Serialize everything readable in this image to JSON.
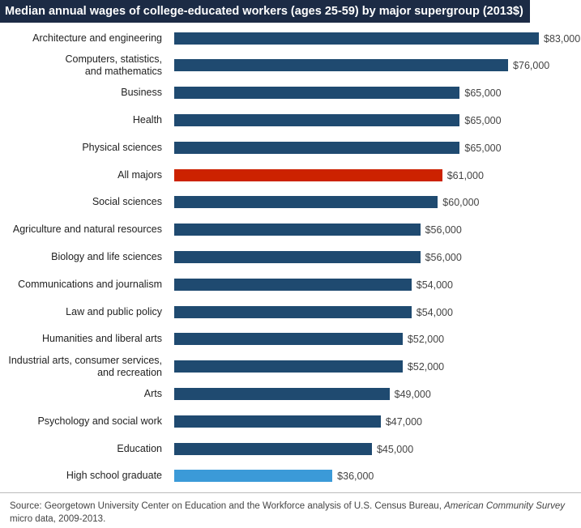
{
  "chart_data": {
    "type": "hbar",
    "title": "Median annual wages of college-educated workers (ages 25-59) by major supergroup (2013$)",
    "categories": [
      "Architecture and engineering",
      "Computers, statistics,\nand mathematics",
      "Business",
      "Health",
      "Physical sciences",
      "All majors",
      "Social sciences",
      "Agriculture and natural resources",
      "Biology and life sciences",
      "Communications and journalism",
      "Law and public policy",
      "Humanities and liberal arts",
      "Industrial arts, consumer services,\nand recreation",
      "Arts",
      "Psychology and social work",
      "Education",
      "High school graduate"
    ],
    "values": [
      83000,
      76000,
      65000,
      65000,
      65000,
      61000,
      60000,
      56000,
      56000,
      54000,
      54000,
      52000,
      52000,
      49000,
      47000,
      45000,
      36000
    ],
    "value_labels": [
      "$83,000",
      "$76,000",
      "$65,000",
      "$65,000",
      "$65,000",
      "$61,000",
      "$60,000",
      "$56,000",
      "$56,000",
      "$54,000",
      "$54,000",
      "$52,000",
      "$52,000",
      "$49,000",
      "$47,000",
      "$45,000",
      "$36,000"
    ],
    "colors": [
      "#1f4a70",
      "#1f4a70",
      "#1f4a70",
      "#1f4a70",
      "#1f4a70",
      "#cc2200",
      "#1f4a70",
      "#1f4a70",
      "#1f4a70",
      "#1f4a70",
      "#1f4a70",
      "#1f4a70",
      "#1f4a70",
      "#1f4a70",
      "#1f4a70",
      "#1f4a70",
      "#3b9ad8"
    ],
    "note": {
      "prefix": "Source: Georgetown University Center on Education and the Workforce analysis of U.S. Census Bureau, ",
      "italic": "American Community Survey",
      "suffix": " micro data, 2009-2013."
    }
  }
}
